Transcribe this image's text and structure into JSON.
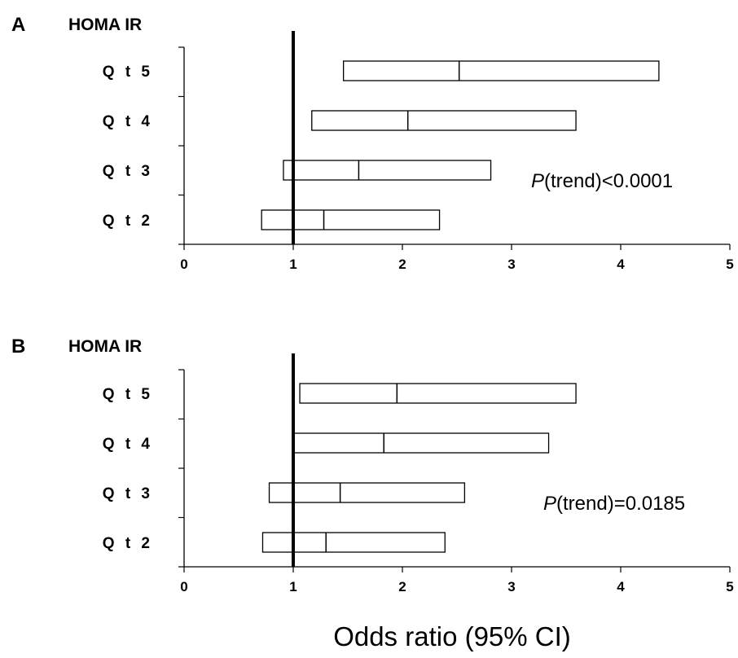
{
  "chart_data": [
    {
      "type": "forest",
      "panel_label": "A",
      "title": "HOMA IR",
      "xlabel": "",
      "xlim": [
        0,
        5
      ],
      "xticks": [
        "0",
        "1",
        "2",
        "3",
        "4",
        "5"
      ],
      "reference_line": 1,
      "annotation_prefix": "P",
      "annotation_suffix": "(trend)<0.0001",
      "rows": [
        {
          "label": "Q t 5",
          "lower": 1.46,
          "estimate": 2.52,
          "upper": 4.35
        },
        {
          "label": "Q t 4",
          "lower": 1.17,
          "estimate": 2.05,
          "upper": 3.59
        },
        {
          "label": "Q t 3",
          "lower": 0.91,
          "estimate": 1.6,
          "upper": 2.81
        },
        {
          "label": "Q t 2",
          "lower": 0.71,
          "estimate": 1.28,
          "upper": 2.34
        }
      ]
    },
    {
      "type": "forest",
      "panel_label": "B",
      "title": "HOMA IR",
      "xlabel": "Odds ratio (95% CI)",
      "xlim": [
        0,
        5
      ],
      "xticks": [
        "0",
        "1",
        "2",
        "3",
        "4",
        "5"
      ],
      "reference_line": 1,
      "annotation_prefix": "P",
      "annotation_suffix": "(trend)=0.0185",
      "rows": [
        {
          "label": "Q t 5",
          "lower": 1.06,
          "estimate": 1.95,
          "upper": 3.59
        },
        {
          "label": "Q t 4",
          "lower": 1.01,
          "estimate": 1.83,
          "upper": 3.34
        },
        {
          "label": "Q t 3",
          "lower": 0.78,
          "estimate": 1.43,
          "upper": 2.57
        },
        {
          "label": "Q t 2",
          "lower": 0.72,
          "estimate": 1.3,
          "upper": 2.39
        }
      ]
    }
  ]
}
